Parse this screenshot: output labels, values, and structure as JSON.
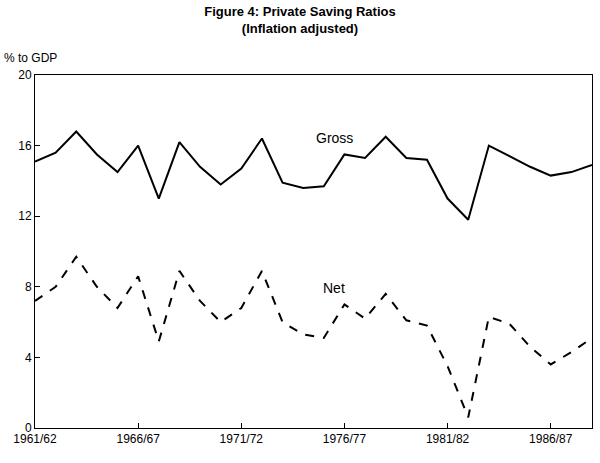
{
  "chart_data": {
    "type": "line",
    "title": "Figure 4: Private Saving Ratios",
    "subtitle": "(Inflation adjusted)",
    "y_label": "% to GDP",
    "categories": [
      "1961/62",
      null,
      null,
      null,
      null,
      "1966/67",
      null,
      null,
      null,
      null,
      "1971/72",
      null,
      null,
      null,
      null,
      "1976/77",
      null,
      null,
      null,
      null,
      "1981/82",
      null,
      null,
      null,
      null,
      "1986/87",
      null,
      null
    ],
    "series": [
      {
        "name": "Gross",
        "color": "#000000",
        "line_style": "solid",
        "values": [
          15.1,
          15.6,
          16.8,
          15.5,
          14.5,
          16.0,
          13.0,
          16.2,
          14.8,
          13.8,
          14.7,
          16.4,
          13.9,
          13.6,
          13.7,
          15.5,
          15.3,
          16.5,
          15.3,
          15.2,
          13.0,
          11.8,
          16.0,
          15.4,
          14.8,
          14.3,
          14.5,
          14.9
        ]
      },
      {
        "name": "Net",
        "color": "#000000",
        "line_style": "dashed",
        "values": [
          7.2,
          8.0,
          9.7,
          8.0,
          6.8,
          8.6,
          4.9,
          8.9,
          7.2,
          6.0,
          6.8,
          8.9,
          6.0,
          5.3,
          5.1,
          7.0,
          6.2,
          7.6,
          6.1,
          5.8,
          3.5,
          0.6,
          6.3,
          5.9,
          4.6,
          3.6,
          4.3,
          5.1
        ]
      }
    ],
    "ylim": [
      0,
      20
    ],
    "yticks": [
      0,
      4,
      8,
      12,
      16,
      20
    ],
    "grid": false
  }
}
